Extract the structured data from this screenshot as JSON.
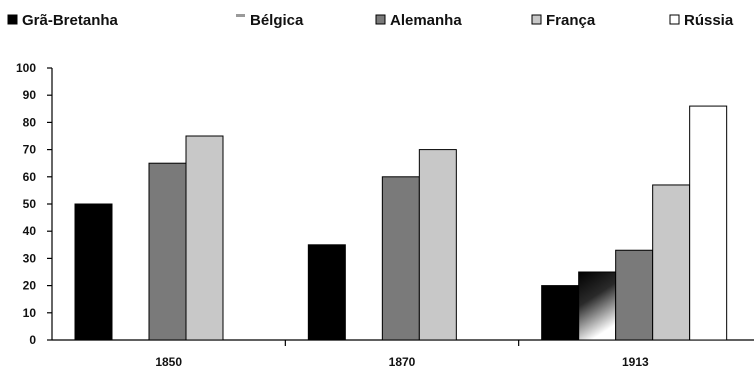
{
  "chart_data": {
    "type": "bar",
    "categories": [
      "1850",
      "1870",
      "1913"
    ],
    "series": [
      {
        "name": "Grã-Bretanha",
        "values": [
          50,
          35,
          20
        ]
      },
      {
        "name": "Bélgica",
        "values": [
          0,
          0,
          25
        ]
      },
      {
        "name": "Alemanha",
        "values": [
          65,
          60,
          33
        ]
      },
      {
        "name": "França",
        "values": [
          75,
          70,
          57
        ]
      },
      {
        "name": "Rússia",
        "values": [
          0,
          0,
          86
        ]
      }
    ],
    "ylim": [
      0,
      100
    ],
    "yticks": [
      0,
      10,
      20,
      30,
      40,
      50,
      60,
      70,
      80,
      90,
      100
    ],
    "legend_position": "top",
    "grid": false
  },
  "colors": {
    "Grã-Bretanha": "#000000",
    "Bélgica": "gradient-dark-to-white",
    "Alemanha": "#7a7a7a",
    "França": "#c8c8c8",
    "Rússia": "#ffffff"
  }
}
